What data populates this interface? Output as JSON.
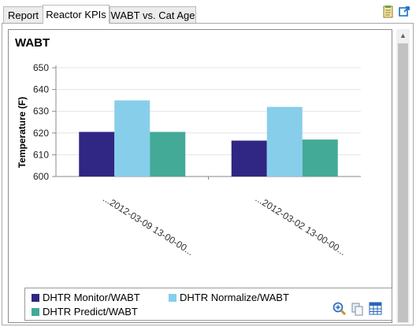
{
  "tabs": [
    {
      "label": "Report"
    },
    {
      "label": "Reactor KPIs"
    },
    {
      "label": "WABT vs. Cat Age"
    }
  ],
  "toolbar": {
    "notes_icon": "notes-icon",
    "popout_icon": "popout-icon"
  },
  "card": {
    "title": "WABT"
  },
  "chart_data": {
    "type": "bar",
    "title": "WABT",
    "xlabel": "",
    "ylabel": "Temperature (F)",
    "ylim": [
      600,
      650
    ],
    "yticks": [
      600,
      610,
      620,
      630,
      640,
      650
    ],
    "grid": true,
    "categories": [
      "...2012-03-09 13-00-00...",
      "...2012-03-02 13-00-00..."
    ],
    "series": [
      {
        "name": "DHTR Monitor/WABT",
        "color": "#302683",
        "values": [
          620.5,
          616.5
        ]
      },
      {
        "name": "DHTR Normalize/WABT",
        "color": "#87ceeb",
        "values": [
          635,
          632
        ]
      },
      {
        "name": "DHTR Predict/WABT",
        "color": "#43aa97",
        "values": [
          620.5,
          617
        ]
      }
    ],
    "legend_placement": "bottom"
  },
  "icons": {
    "zoom": "zoom-in-icon",
    "copy": "copy-icon",
    "table": "table-view-icon"
  }
}
